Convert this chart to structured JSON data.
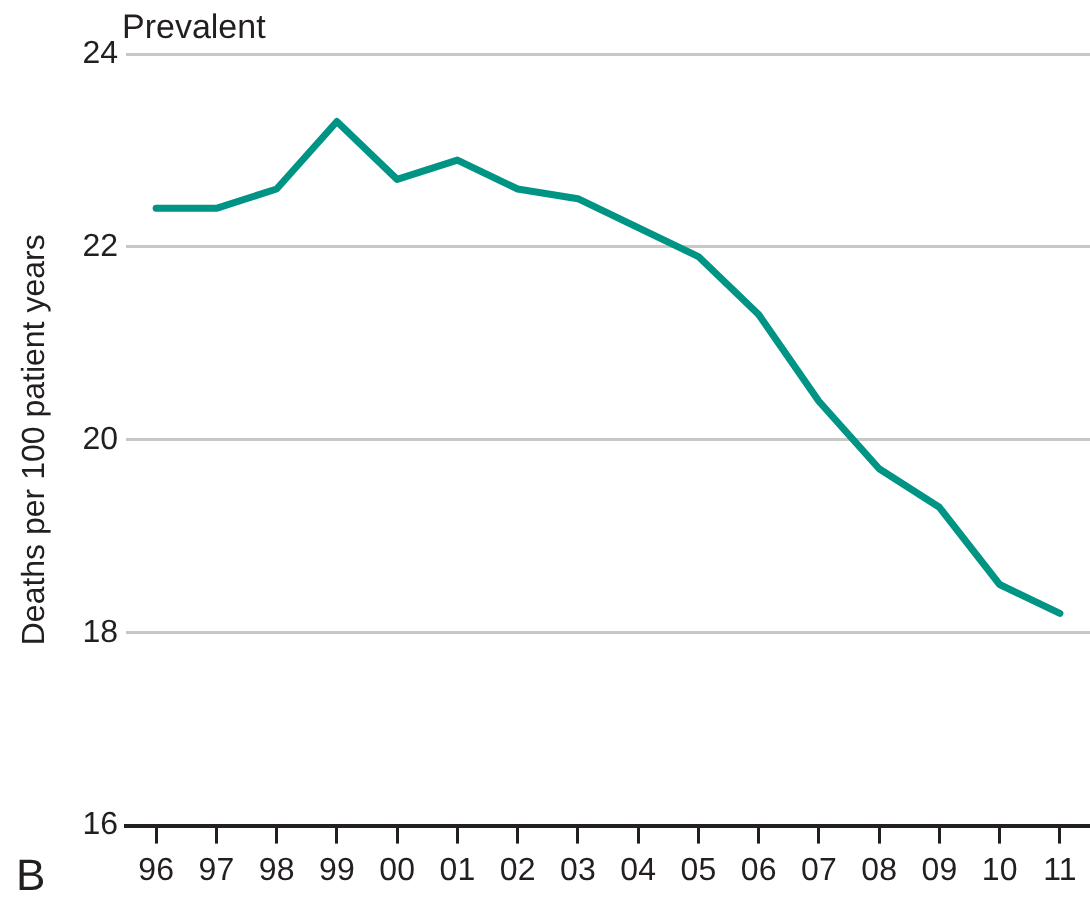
{
  "chart_data": {
    "type": "line",
    "title": "Prevalent",
    "ylabel": "Deaths per 100 patient years",
    "categories": [
      "96",
      "97",
      "98",
      "99",
      "00",
      "01",
      "02",
      "03",
      "04",
      "05",
      "06",
      "07",
      "08",
      "09",
      "10",
      "11"
    ],
    "series": [
      {
        "color": "#009485",
        "values": [
          22.4,
          22.4,
          22.6,
          23.3,
          22.7,
          22.9,
          22.6,
          22.5,
          22.2,
          21.9,
          21.3,
          20.4,
          19.7,
          19.3,
          18.5,
          18.2
        ]
      }
    ],
    "ylim": [
      16,
      24
    ],
    "yticks": [
      16,
      18,
      20,
      22,
      24
    ],
    "grid": "y",
    "legend": false,
    "marker": "none",
    "line_style": "solid",
    "annotations": [
      "B"
    ]
  }
}
